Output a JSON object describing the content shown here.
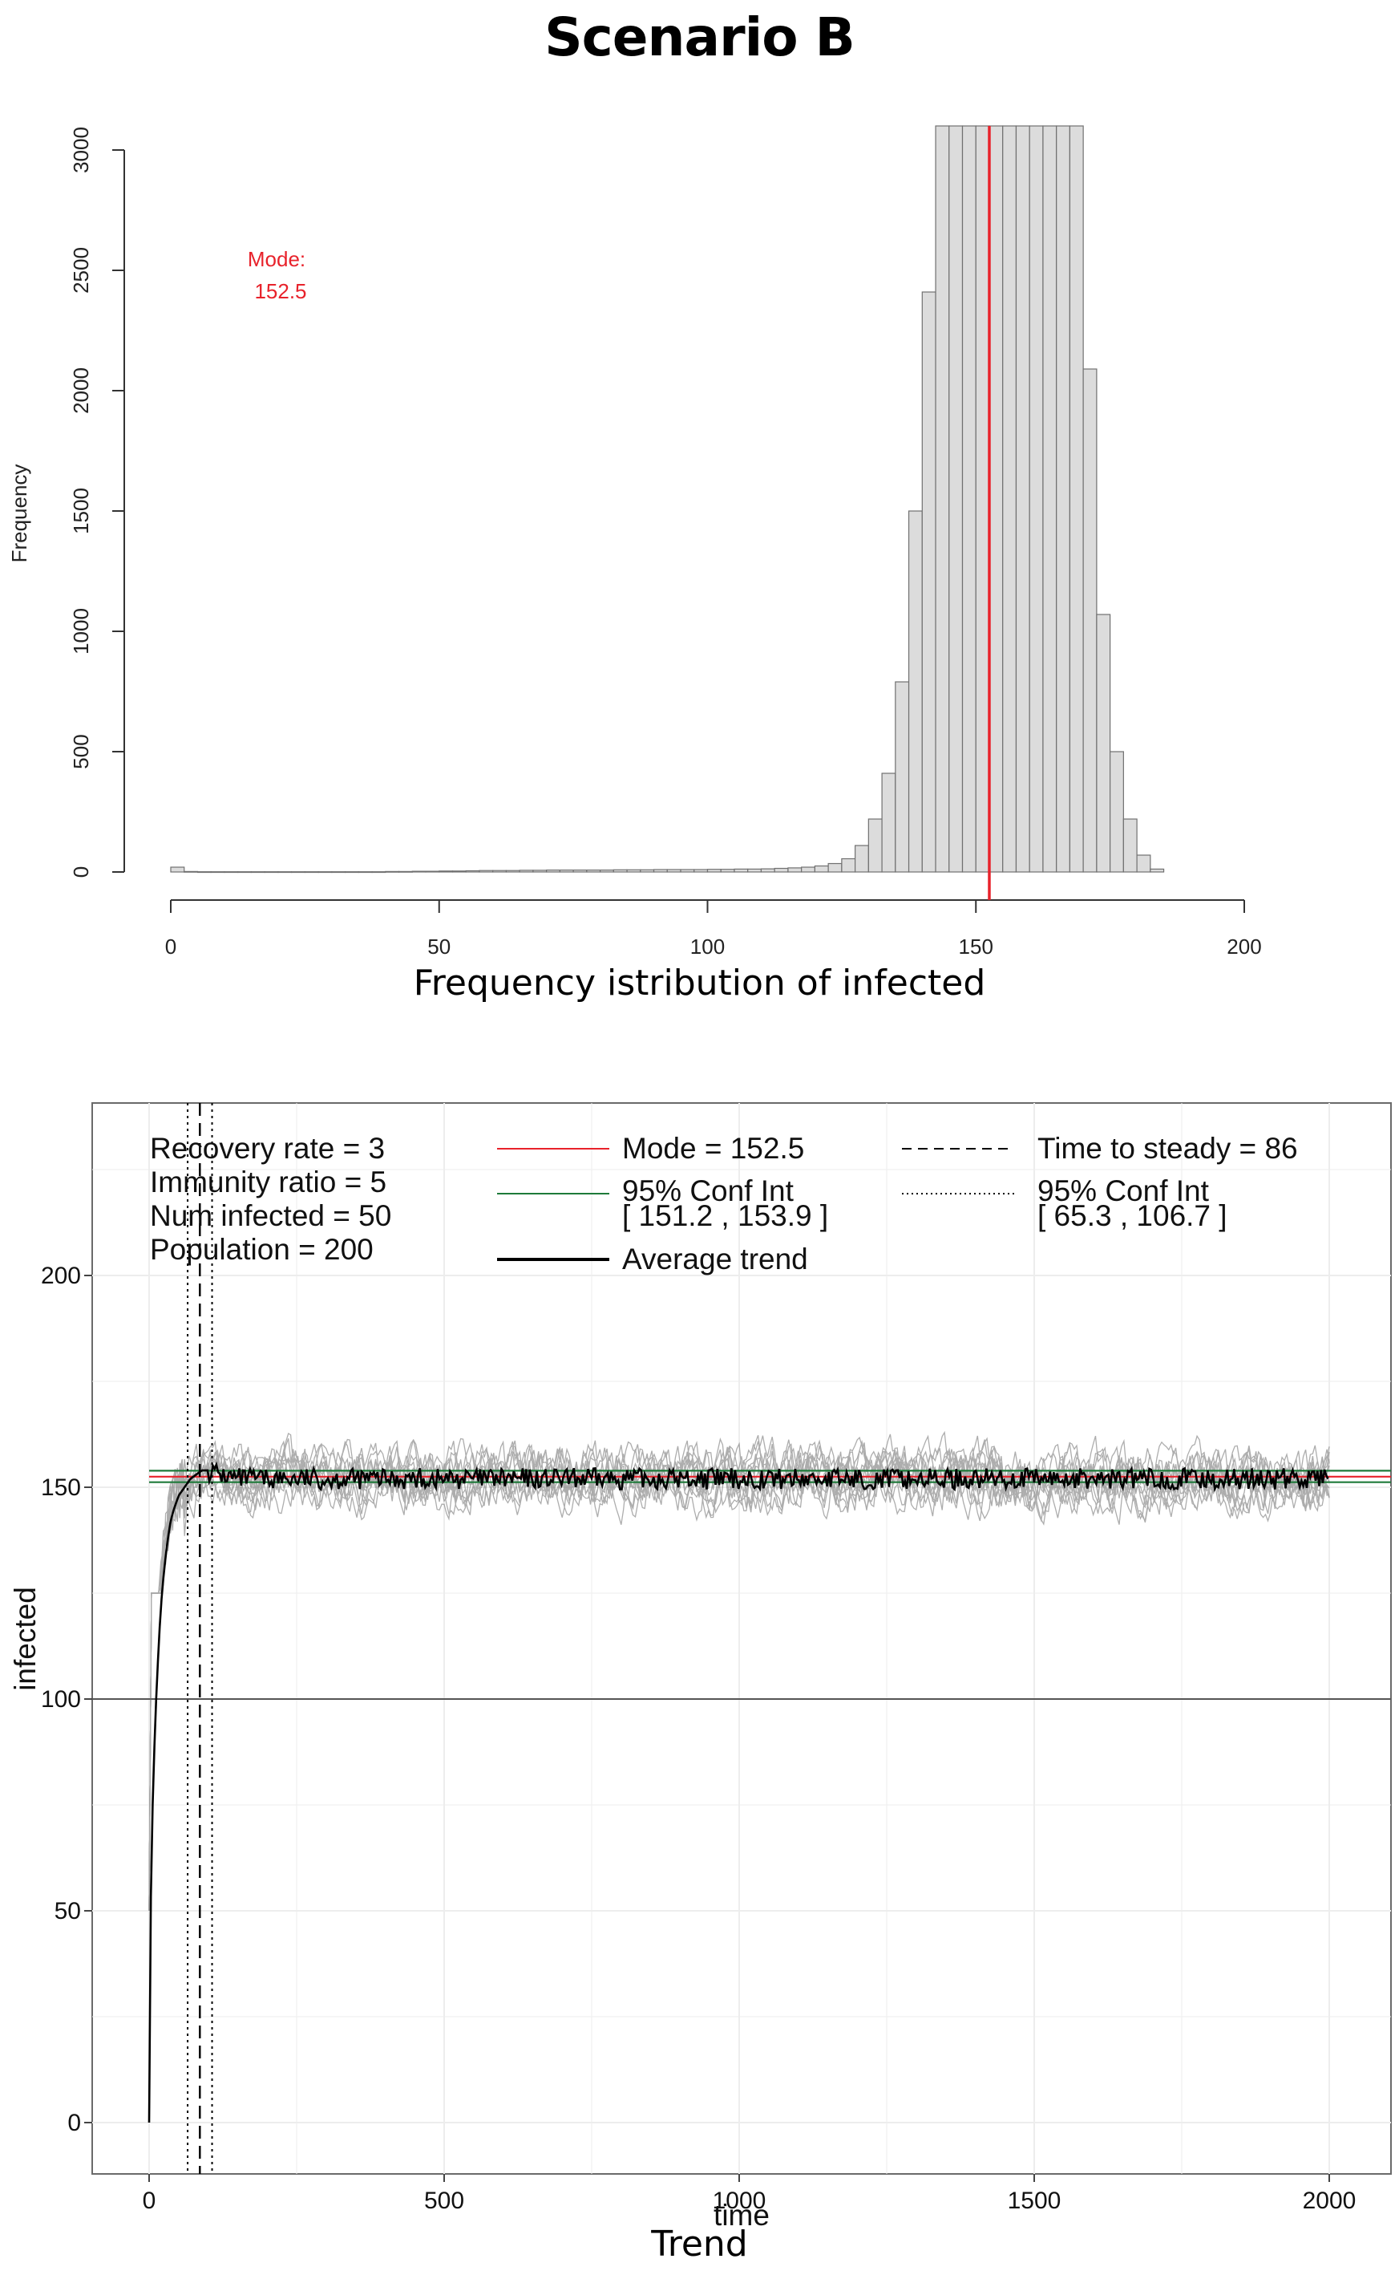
{
  "title": "Scenario B",
  "chart_data": [
    {
      "type": "bar",
      "caption": "Frequency istribution of infected",
      "ylabel": "Frequency",
      "xlim": [
        0,
        200
      ],
      "ylim": [
        0,
        3000
      ],
      "x_ticks": [
        "0",
        "50",
        "100",
        "150",
        "200"
      ],
      "y_ticks": [
        "0",
        "500",
        "1000",
        "1500",
        "2000",
        "2500",
        "3000"
      ],
      "bin_width": 2.5,
      "bin_start": 0,
      "bar_fill": "#dcdcdc",
      "bar_stroke": "#707070",
      "values": [
        20,
        2,
        1,
        1,
        1,
        1,
        1,
        1,
        1,
        1,
        1,
        1,
        1,
        1,
        1,
        1,
        2,
        2,
        3,
        3,
        4,
        4,
        5,
        6,
        6,
        6,
        7,
        7,
        8,
        8,
        8,
        8,
        8,
        9,
        9,
        9,
        10,
        10,
        10,
        10,
        11,
        11,
        12,
        12,
        13,
        15,
        17,
        20,
        25,
        35,
        55,
        110,
        220,
        410,
        790,
        1500,
        2410,
        3300,
        3300,
        3300,
        3300,
        3300,
        3300,
        3300,
        3300,
        3300,
        3300,
        3300,
        2090,
        1070,
        500,
        220,
        70,
        12
      ],
      "mode_line": {
        "x": 152.5,
        "color": "#e8222b"
      },
      "annotation": {
        "label": "Mode:",
        "value": "152.5",
        "color": "#e8222b"
      }
    },
    {
      "type": "line",
      "caption": "Trend",
      "xlabel": "time",
      "ylabel": "infected",
      "xlim": [
        0,
        2000
      ],
      "ylim": [
        0,
        240
      ],
      "x_ticks": [
        "0",
        "500",
        "1000",
        "1500",
        "2000"
      ],
      "y_ticks": [
        "0",
        "50",
        "100",
        "150",
        "200"
      ],
      "grid": true,
      "reference_line": 100,
      "params_text": [
        "Recovery rate = 3",
        "Immunity ratio = 5",
        "Num infected = 50",
        "Population = 200"
      ],
      "legend": [
        {
          "label": "Mode = 152.5",
          "color": "#e8222b",
          "style": "solid"
        },
        {
          "label": "95% Conf Int",
          "sublabel": "[ 151.2 , 153.9 ]",
          "color": "#1e7a3a",
          "style": "solid"
        },
        {
          "label": "Average trend",
          "color": "#000000",
          "style": "thick"
        },
        {
          "label": "Time to steady = 86",
          "color": "#000000",
          "style": "dashed"
        },
        {
          "label": "95% Conf Int",
          "sublabel": "[ 65.3 , 106.7 ]",
          "color": "#000000",
          "style": "dotted"
        }
      ],
      "mode": 152.5,
      "ci_mode": [
        151.2,
        153.9
      ],
      "time_to_steady": 86,
      "ci_time": [
        65.3,
        106.7
      ],
      "series": [
        {
          "name": "Average trend",
          "x": [
            0,
            2,
            5,
            8,
            12,
            16,
            20,
            25,
            30,
            35,
            40,
            50,
            60,
            70,
            80,
            90,
            100,
            120,
            150,
            200,
            300,
            500,
            1000,
            1500,
            2000
          ],
          "values": [
            0,
            45,
            70,
            85,
            100,
            112,
            122,
            130,
            136,
            141,
            144,
            148,
            150,
            152,
            153,
            154,
            154,
            153,
            152,
            152,
            152,
            152,
            152,
            152,
            152
          ]
        }
      ],
      "simulation_runs_plateau_range": [
        128,
        173
      ]
    }
  ]
}
